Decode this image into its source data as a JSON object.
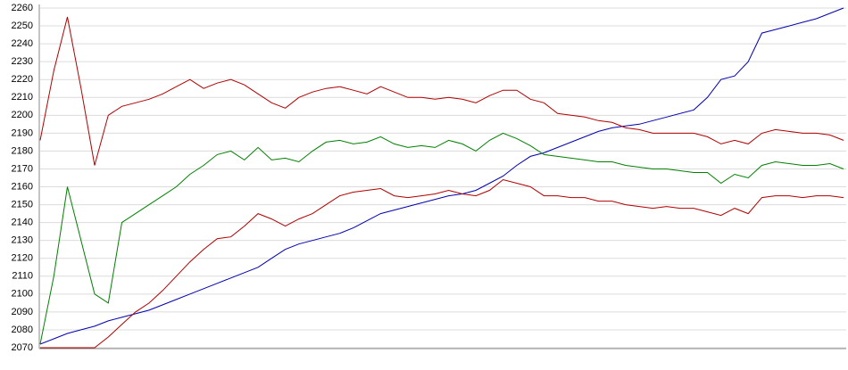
{
  "chart_data": {
    "type": "line",
    "ylim": [
      2070,
      2260
    ],
    "yticks": [
      2070,
      2080,
      2090,
      2100,
      2110,
      2120,
      2130,
      2140,
      2150,
      2160,
      2170,
      2180,
      2190,
      2200,
      2210,
      2220,
      2230,
      2240,
      2250,
      2260
    ],
    "grid": true,
    "series": [
      {
        "color": "#0000b0",
        "values": [
          2072,
          2075,
          2078,
          2080,
          2082,
          2085,
          2087,
          2089,
          2091,
          2094,
          2097,
          2100,
          2103,
          2106,
          2109,
          2112,
          2115,
          2120,
          2125,
          2128,
          2130,
          2132,
          2134,
          2137,
          2141,
          2145,
          2147,
          2149,
          2151,
          2153,
          2155,
          2156,
          2158,
          2162,
          2166,
          2172,
          2177,
          2179,
          2182,
          2185,
          2188,
          2191,
          2193,
          2194,
          2195,
          2197,
          2199,
          2201,
          2203,
          2210,
          2220,
          2222,
          2230,
          2246,
          2248,
          2250,
          2252,
          2254,
          2257,
          2260
        ]
      },
      {
        "color": "#b00000",
        "values": [
          2186,
          2225,
          2255,
          2215,
          2172,
          2200,
          2205,
          2207,
          2209,
          2212,
          2216,
          2220,
          2215,
          2218,
          2220,
          2217,
          2212,
          2207,
          2204,
          2210,
          2213,
          2215,
          2216,
          2214,
          2212,
          2216,
          2213,
          2210,
          2210,
          2209,
          2210,
          2209,
          2207,
          2211,
          2214,
          2214,
          2209,
          2207,
          2201,
          2200,
          2199,
          2197,
          2196,
          2193,
          2192,
          2190,
          2190,
          2190,
          2190,
          2188,
          2184,
          2186,
          2184,
          2190,
          2192,
          2191,
          2190,
          2190,
          2189,
          2186
        ]
      },
      {
        "color": "#008000",
        "values": [
          2072,
          2110,
          2160,
          2130,
          2100,
          2095,
          2140,
          2145,
          2150,
          2155,
          2160,
          2167,
          2172,
          2178,
          2180,
          2175,
          2182,
          2175,
          2176,
          2174,
          2180,
          2185,
          2186,
          2184,
          2185,
          2188,
          2184,
          2182,
          2183,
          2182,
          2186,
          2184,
          2180,
          2186,
          2190,
          2187,
          2183,
          2178,
          2177,
          2176,
          2175,
          2174,
          2174,
          2172,
          2171,
          2170,
          2170,
          2169,
          2168,
          2168,
          2162,
          2167,
          2165,
          2172,
          2174,
          2173,
          2172,
          2172,
          2173,
          2170
        ]
      },
      {
        "color": "#b00000",
        "values": [
          2070,
          2070,
          2070,
          2070,
          2070,
          2076,
          2083,
          2090,
          2095,
          2102,
          2110,
          2118,
          2125,
          2131,
          2132,
          2138,
          2145,
          2142,
          2138,
          2142,
          2145,
          2150,
          2155,
          2157,
          2158,
          2159,
          2155,
          2154,
          2155,
          2156,
          2158,
          2156,
          2155,
          2158,
          2164,
          2162,
          2160,
          2155,
          2155,
          2154,
          2154,
          2152,
          2152,
          2150,
          2149,
          2148,
          2149,
          2148,
          2148,
          2146,
          2144,
          2148,
          2145,
          2154,
          2155,
          2155,
          2154,
          2155,
          2155,
          2154
        ]
      }
    ]
  }
}
